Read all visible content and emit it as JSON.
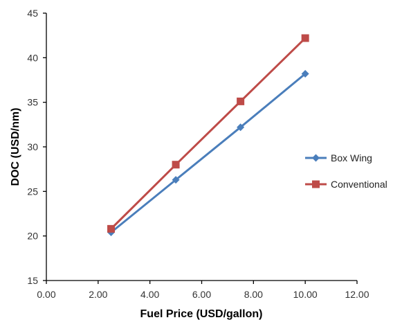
{
  "chart_data": {
    "type": "line",
    "title": "",
    "xlabel": "Fuel Price (USD/gallon)",
    "ylabel": "DOC (USD/nm)",
    "xlim": [
      0,
      12
    ],
    "ylim": [
      15,
      45
    ],
    "xticks": [
      "0.00",
      "2.00",
      "4.00",
      "6.00",
      "8.00",
      "10.00",
      "12.00"
    ],
    "xtick_values": [
      0,
      2,
      4,
      6,
      8,
      10,
      12
    ],
    "yticks": [
      "15",
      "20",
      "25",
      "30",
      "35",
      "40",
      "45"
    ],
    "ytick_values": [
      15,
      20,
      25,
      30,
      35,
      40,
      45
    ],
    "grid": false,
    "legend_position": "right",
    "series": [
      {
        "name": "Box Wing",
        "color": "#4a7ebb",
        "marker": "diamond",
        "x": [
          2.5,
          5.0,
          7.5,
          10.0
        ],
        "y": [
          20.4,
          26.3,
          32.2,
          38.2
        ]
      },
      {
        "name": "Conventional",
        "color": "#be4b48",
        "marker": "square",
        "x": [
          2.5,
          5.0,
          7.5,
          10.0
        ],
        "y": [
          20.8,
          28.0,
          35.1,
          42.2
        ]
      }
    ]
  }
}
